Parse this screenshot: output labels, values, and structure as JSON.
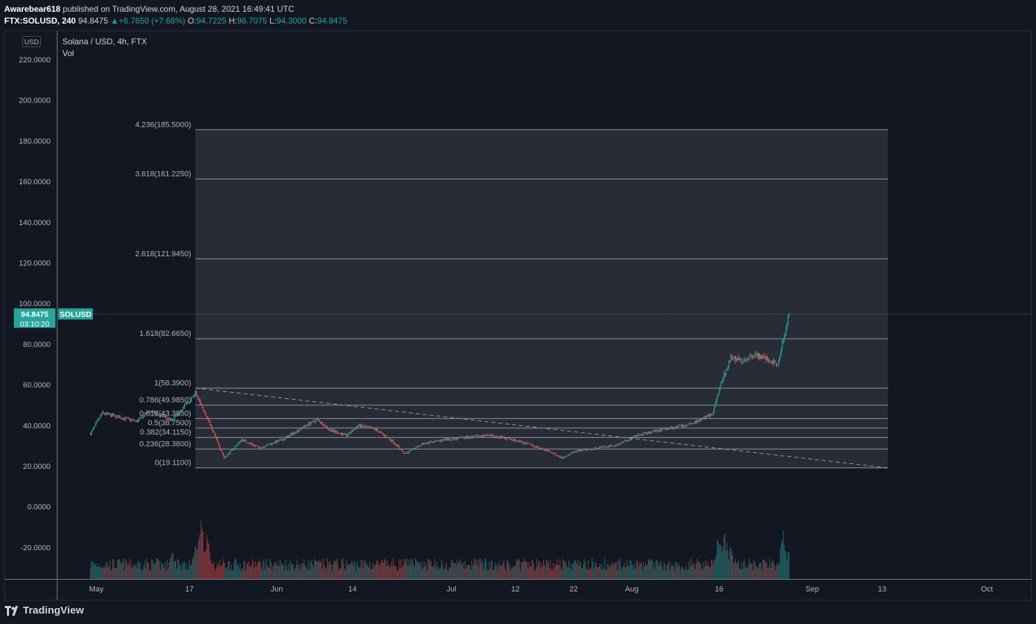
{
  "header": {
    "author": "Awarebear618",
    "published_text": "published on TradingView.com, August 28, 2021 16:49:41 UTC",
    "symbol": "FTX:SOLUSD, 240",
    "last": "94.8475",
    "change": "+6.7650 (+7.68%)",
    "open_label": "O:",
    "open": "94.7225",
    "high_label": "H:",
    "high": "96.7075",
    "low_label": "L:",
    "low": "94.3000",
    "close_label": "C:",
    "close": "94.8475"
  },
  "legend": {
    "series": "Solana / USD, 4h, FTX",
    "volume": "Vol"
  },
  "currency_badge": "USD",
  "price_label": {
    "value": "94.8475",
    "countdown": "03:10:20",
    "symbol": "SOLUSD"
  },
  "brand": "TradingView",
  "colors": {
    "up": "#26a69a",
    "down": "#ef5350",
    "background": "#131722",
    "fib_line": "#9598a1"
  },
  "chart_data": {
    "type": "candlestick",
    "title": "Solana / USD, 4h, FTX",
    "y_ticks": [
      "220.0000",
      "200.0000",
      "180.0000",
      "160.0000",
      "140.0000",
      "120.0000",
      "100.0000",
      "80.0000",
      "60.0000",
      "40.0000",
      "20.0000",
      "0.0000",
      "-20.0000"
    ],
    "y_tick_values": [
      220,
      200,
      180,
      160,
      140,
      120,
      100,
      80,
      60,
      40,
      20,
      0,
      -20
    ],
    "ylim": [
      -35,
      229
    ],
    "x_ticks": [
      "May",
      "17",
      "Jun",
      "14",
      "Jul",
      "12",
      "22",
      "Aug",
      "16",
      "Sep",
      "13",
      "Oct"
    ],
    "x_tick_dates": [
      "2021-05-01",
      "2021-05-17",
      "2021-06-01",
      "2021-06-14",
      "2021-07-01",
      "2021-07-12",
      "2021-07-22",
      "2021-08-01",
      "2021-08-16",
      "2021-09-01",
      "2021-09-13",
      "2021-10-01"
    ],
    "last_price": 94.8475,
    "fib_levels": [
      {
        "label": "4.236(185.5000)",
        "ratio": 4.236,
        "price": 185.5
      },
      {
        "label": "3.618(161.2250)",
        "ratio": 3.618,
        "price": 161.225
      },
      {
        "label": "2.618(121.9450)",
        "ratio": 2.618,
        "price": 121.945
      },
      {
        "label": "1.618(82.6650)",
        "ratio": 1.618,
        "price": 82.665
      },
      {
        "label": "1(58.3900)",
        "ratio": 1,
        "price": 58.39
      },
      {
        "label": "0.786(49.9850)",
        "ratio": 0.786,
        "price": 49.985
      },
      {
        "label": "0.618(43.3850)",
        "ratio": 0.618,
        "price": 43.385
      },
      {
        "label": "0.5(38.7500)",
        "ratio": 0.5,
        "price": 38.75
      },
      {
        "label": "0.382(34.1150)",
        "ratio": 0.382,
        "price": 34.115
      },
      {
        "label": "0.236(28.3800)",
        "ratio": 0.236,
        "price": 28.38
      },
      {
        "label": "0(19.1100)",
        "ratio": 0,
        "price": 19.11
      }
    ],
    "fib_range": {
      "start_date": "2021-05-18",
      "end_date": "2021-09-14"
    },
    "trendline": {
      "start": {
        "date": "2021-05-18",
        "price": 58.39
      },
      "end": {
        "date": "2021-09-14",
        "price": 19.11
      }
    },
    "price_path": [
      {
        "date": "2021-04-30",
        "price": 36
      },
      {
        "date": "2021-05-02",
        "price": 46
      },
      {
        "date": "2021-05-05",
        "price": 44
      },
      {
        "date": "2021-05-08",
        "price": 42
      },
      {
        "date": "2021-05-10",
        "price": 47
      },
      {
        "date": "2021-05-12",
        "price": 45
      },
      {
        "date": "2021-05-14",
        "price": 43
      },
      {
        "date": "2021-05-16",
        "price": 49
      },
      {
        "date": "2021-05-18",
        "price": 56
      },
      {
        "date": "2021-05-20",
        "price": 44
      },
      {
        "date": "2021-05-23",
        "price": 24
      },
      {
        "date": "2021-05-26",
        "price": 33
      },
      {
        "date": "2021-05-29",
        "price": 29
      },
      {
        "date": "2021-06-02",
        "price": 33
      },
      {
        "date": "2021-06-06",
        "price": 40
      },
      {
        "date": "2021-06-08",
        "price": 43
      },
      {
        "date": "2021-06-10",
        "price": 38
      },
      {
        "date": "2021-06-13",
        "price": 35
      },
      {
        "date": "2021-06-15",
        "price": 40
      },
      {
        "date": "2021-06-18",
        "price": 38
      },
      {
        "date": "2021-06-21",
        "price": 32
      },
      {
        "date": "2021-06-23",
        "price": 26
      },
      {
        "date": "2021-06-26",
        "price": 31
      },
      {
        "date": "2021-06-30",
        "price": 33
      },
      {
        "date": "2021-07-03",
        "price": 34
      },
      {
        "date": "2021-07-07",
        "price": 35
      },
      {
        "date": "2021-07-10",
        "price": 34
      },
      {
        "date": "2021-07-14",
        "price": 31
      },
      {
        "date": "2021-07-18",
        "price": 27
      },
      {
        "date": "2021-07-20",
        "price": 24
      },
      {
        "date": "2021-07-22",
        "price": 27
      },
      {
        "date": "2021-07-26",
        "price": 29
      },
      {
        "date": "2021-07-29",
        "price": 30
      },
      {
        "date": "2021-08-02",
        "price": 35
      },
      {
        "date": "2021-08-06",
        "price": 38
      },
      {
        "date": "2021-08-10",
        "price": 40
      },
      {
        "date": "2021-08-13",
        "price": 43
      },
      {
        "date": "2021-08-15",
        "price": 46
      },
      {
        "date": "2021-08-16",
        "price": 58
      },
      {
        "date": "2021-08-17",
        "price": 66
      },
      {
        "date": "2021-08-18",
        "price": 73
      },
      {
        "date": "2021-08-20",
        "price": 72
      },
      {
        "date": "2021-08-22",
        "price": 75
      },
      {
        "date": "2021-08-24",
        "price": 73
      },
      {
        "date": "2021-08-26",
        "price": 70
      },
      {
        "date": "2021-08-27",
        "price": 82
      },
      {
        "date": "2021-08-28",
        "price": 95
      }
    ],
    "volume_spikes": [
      {
        "date": "2021-05-19",
        "level": 1.0
      },
      {
        "date": "2021-05-20",
        "level": 0.7
      },
      {
        "date": "2021-05-18",
        "level": 0.55
      },
      {
        "date": "2021-05-14",
        "level": 0.45
      },
      {
        "date": "2021-06-25",
        "level": 0.4
      },
      {
        "date": "2021-08-16",
        "level": 0.8
      },
      {
        "date": "2021-08-17",
        "level": 0.75
      },
      {
        "date": "2021-08-18",
        "level": 0.6
      },
      {
        "date": "2021-08-27",
        "level": 0.75
      },
      {
        "date": "2021-08-28",
        "level": 0.55
      }
    ]
  }
}
